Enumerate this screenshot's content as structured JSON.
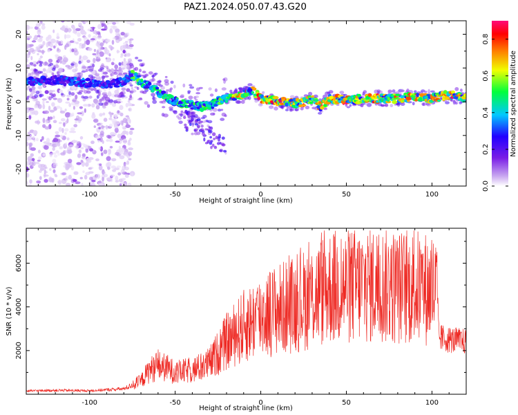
{
  "figure": {
    "title": "PAZ1.2024.050.07.43.G20"
  },
  "colors": {
    "snr_line": "#ee2a24",
    "colormap": [
      "#ffffff",
      "#c9a8f0",
      "#7a1ee6",
      "#2200ff",
      "#00c8ff",
      "#00ff3c",
      "#f0ff00",
      "#ff7a00",
      "#ff0000",
      "#ff0a7a"
    ]
  },
  "chart_data": [
    {
      "type": "heatmap",
      "xlabel": "Height of straight line (km)",
      "ylabel": "Frequency (Hz)",
      "xlim": [
        -137,
        120
      ],
      "ylim": [
        -25,
        24
      ],
      "xticks": [
        -100,
        -50,
        0,
        50,
        100
      ],
      "yticks": [
        -20,
        -10,
        0,
        10,
        20
      ],
      "colorbar": {
        "label": "Normalized spectral amplitude",
        "range": [
          0,
          0.9
        ],
        "ticks": [
          "0.0",
          "0.2",
          "0.4",
          "0.6",
          "0.8"
        ]
      },
      "ridge": {
        "x": [
          -137,
          -120,
          -110,
          -100,
          -90,
          -80,
          -75,
          -70,
          -60,
          -50,
          -40,
          -35,
          -30,
          -25,
          -20,
          -10,
          -5,
          0,
          10,
          20,
          30,
          35,
          40,
          50,
          60,
          70,
          80,
          90,
          100,
          110,
          120
        ],
        "frequency_hz": [
          6,
          6.5,
          6,
          5.5,
          5,
          6,
          8,
          6,
          3,
          0,
          -1,
          -1.5,
          -1,
          0,
          1,
          2,
          3.5,
          1,
          0,
          -0.5,
          0.5,
          -1.5,
          1,
          0.5,
          1,
          1,
          1,
          1.5,
          1,
          2,
          1
        ]
      },
      "noise_region_x": [
        -137,
        -75
      ]
    },
    {
      "type": "line",
      "xlabel": "Height of straight line (km)",
      "ylabel": "SNR (10 * v/v)",
      "xlim": [
        -137,
        120
      ],
      "ylim": [
        0,
        7600
      ],
      "xticks": [
        -100,
        -50,
        0,
        50,
        100
      ],
      "yticks": [
        2000,
        4000,
        6000
      ],
      "series": [
        {
          "envelope": {
            "x": [
              -137,
              -120,
              -100,
              -80,
              -70,
              -65,
              -60,
              -55,
              -50,
              -40,
              -30,
              -25,
              -20,
              -10,
              0,
              10,
              20,
              30,
              40,
              50,
              60,
              70,
              80,
              90,
              100,
              103,
              104,
              110,
              120
            ],
            "y": [
              150,
              180,
              160,
              250,
              600,
              1100,
              1300,
              1200,
              1000,
              1100,
              1400,
              1900,
              2400,
              3100,
              3600,
              3900,
              4100,
              4500,
              4900,
              4900,
              5000,
              5000,
              4900,
              4900,
              4800,
              4700,
              2600,
              2500,
              2400
            ]
          },
          "peak_y": 7500
        }
      ]
    }
  ]
}
